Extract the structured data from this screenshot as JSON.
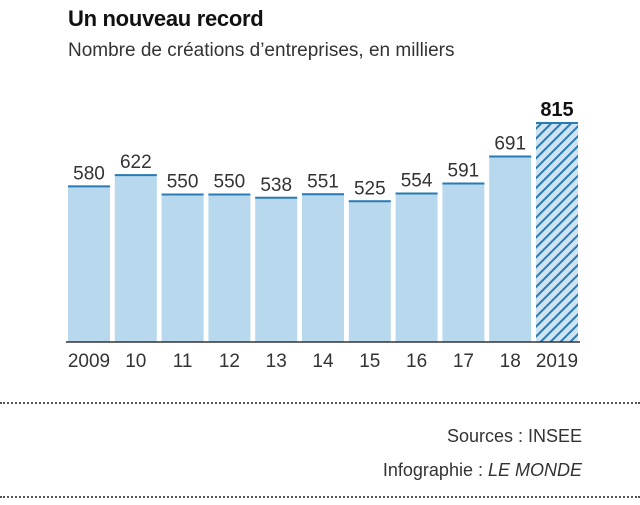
{
  "chart_data": {
    "type": "bar",
    "title": "Un nouveau record",
    "subtitle": "Nombre de créations d’entreprises, en milliers",
    "categories": [
      "2009",
      "10",
      "11",
      "12",
      "13",
      "14",
      "15",
      "16",
      "17",
      "18",
      "2019"
    ],
    "values": [
      580,
      622,
      550,
      550,
      538,
      551,
      525,
      554,
      591,
      691,
      815
    ],
    "highlight_index": 10,
    "ylim": [
      0,
      815
    ],
    "xlabel": "",
    "ylabel": "",
    "colors": {
      "bar": "#b8d8ee",
      "bar_top": "#2a7bb3",
      "highlight_stripe": "#2a7bb3",
      "label": "#333333",
      "highlight_label": "#111111"
    }
  },
  "footer": {
    "sources_label": "Sources : INSEE",
    "infographie_prefix": "Infographie : ",
    "infographie_name": "LE MONDE"
  }
}
